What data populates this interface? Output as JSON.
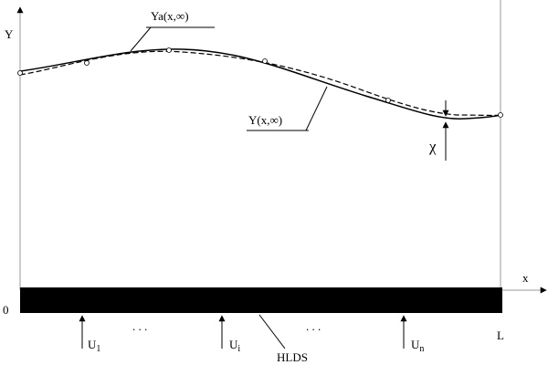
{
  "axes": {
    "y_label": "Y",
    "x_label": "x",
    "origin": "0",
    "end": "L"
  },
  "curves": {
    "approx_label": "Ya(x,∞)",
    "exact_label": "Y(x,∞)",
    "error_label": "χ"
  },
  "controls": [
    {
      "main": "U",
      "sub": "1"
    },
    {
      "main": "U",
      "sub": "i"
    },
    {
      "main": "U",
      "sub": "n"
    }
  ],
  "dots": ". . .",
  "system_label": "HLDS"
}
